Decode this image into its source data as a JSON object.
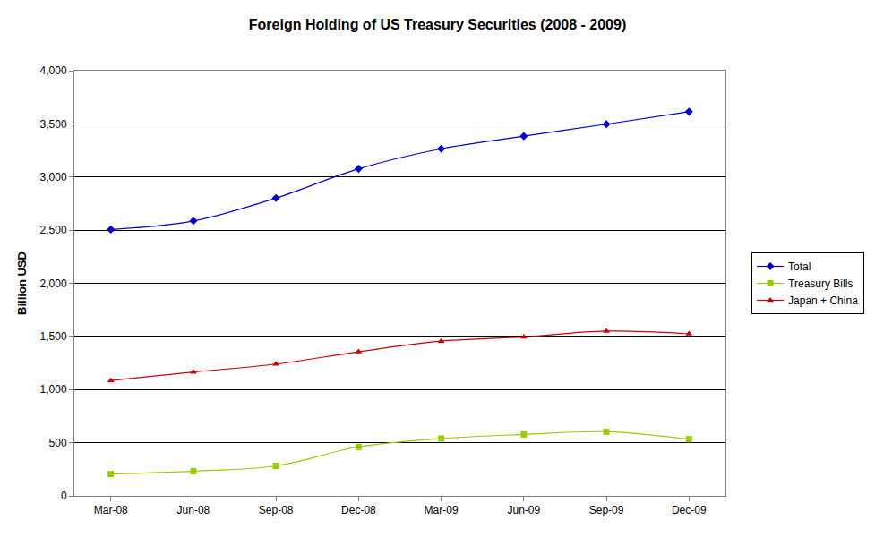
{
  "chart_data": {
    "type": "line",
    "title": "Foreign Holding of US Treasury Securities (2008 - 2009)",
    "y_label": "Billion USD",
    "categories": [
      "Mar-08",
      "Jun-08",
      "Sep-08",
      "Dec-08",
      "Mar-09",
      "Jun-09",
      "Sep-09",
      "Dec-09"
    ],
    "series": [
      {
        "name": "Total",
        "color": "#0000cc",
        "marker": "diamond",
        "line_style": "smooth",
        "values": [
          2506,
          2587,
          2802,
          3077,
          3265,
          3384,
          3497,
          3614
        ]
      },
      {
        "name": "Treasury Bills",
        "color": "#99cc00",
        "marker": "square",
        "line_style": "smooth",
        "values": [
          205,
          232,
          282,
          461,
          540,
          578,
          603,
          533
        ]
      },
      {
        "name": "Japan + China",
        "color": "#cc0000",
        "marker": "triangle-up",
        "line_style": "smooth",
        "values": [
          1085,
          1165,
          1240,
          1355,
          1455,
          1495,
          1550,
          1525
        ]
      }
    ],
    "ylim": [
      0,
      4000
    ],
    "yticks": [
      0,
      500,
      {
        "value": 1000,
        "label": "1,000"
      },
      {
        "value": 1500,
        "label": "1,500"
      },
      {
        "value": 2000,
        "label": "2,000"
      },
      {
        "value": 2500,
        "label": "2,500"
      },
      {
        "value": 3000,
        "label": "3,000"
      },
      {
        "value": 3500,
        "label": "3,500"
      },
      {
        "value": 4000,
        "label": "4,000"
      }
    ],
    "grid": true,
    "legend": "right"
  }
}
